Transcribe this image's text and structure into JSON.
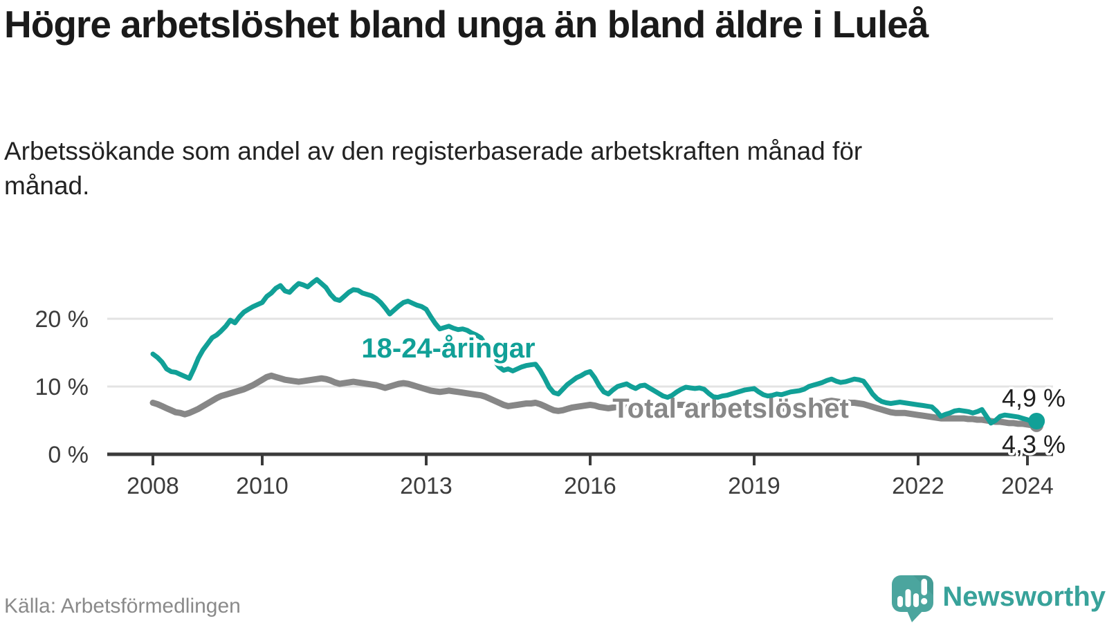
{
  "title": "Högre arbetslöshet bland unga än bland äldre i Luleå",
  "subtitle": "Arbetssökande som andel av den registerbaserade arbetskraften månad för månad.",
  "source": "Källa: Arbetsförmedlingen",
  "branding": {
    "name": "Newsworthy"
  },
  "colors": {
    "young": "#11a097",
    "total": "#878787",
    "title": "#1a1a1a",
    "axis": "#3a3a3a",
    "grid": "#e3e3e3",
    "tick_label": "#3c3c3c",
    "end_label": "#1f1f1f",
    "source": "#8a8a8a",
    "logo_bubble": "#4ba59e",
    "logo_fold": "#459c95",
    "logo_text": "#38a29a"
  },
  "chart_data": {
    "type": "line",
    "unit": "%",
    "x_start": 2008.0,
    "x_step_years": 0.0833333,
    "x_ticks": [
      {
        "v": 2008,
        "label": "2008"
      },
      {
        "v": 2010,
        "label": "2010"
      },
      {
        "v": 2013,
        "label": "2013"
      },
      {
        "v": 2016,
        "label": "2016"
      },
      {
        "v": 2019,
        "label": "2019"
      },
      {
        "v": 2022,
        "label": "2022"
      },
      {
        "v": 2024,
        "label": "2024"
      }
    ],
    "y_ticks": [
      {
        "v": 0,
        "label": "0 %"
      },
      {
        "v": 10,
        "label": "10 %"
      },
      {
        "v": 20,
        "label": "20 %"
      }
    ],
    "ylim": [
      0,
      27
    ],
    "grid": true,
    "legend_position": "inline-labels",
    "series": [
      {
        "name": "18-24-åringar",
        "color_key": "young",
        "end_label": "4,9 %",
        "last_value": 4.9,
        "values": [
          14.8,
          14.3,
          13.6,
          12.6,
          12.2,
          12.1,
          11.8,
          11.5,
          11.2,
          12.6,
          14.2,
          15.4,
          16.3,
          17.2,
          17.6,
          18.2,
          18.9,
          19.8,
          19.4,
          20.3,
          21.0,
          21.4,
          21.8,
          22.1,
          22.4,
          23.3,
          23.8,
          24.5,
          24.9,
          24.1,
          23.9,
          24.6,
          25.2,
          25.0,
          24.7,
          25.3,
          25.8,
          25.2,
          24.6,
          23.6,
          22.9,
          22.7,
          23.3,
          23.9,
          24.3,
          24.2,
          23.8,
          23.6,
          23.4,
          23.0,
          22.4,
          21.6,
          20.7,
          21.3,
          21.9,
          22.4,
          22.6,
          22.3,
          22.0,
          21.8,
          21.4,
          20.3,
          19.3,
          18.5,
          18.7,
          18.9,
          18.6,
          18.4,
          18.5,
          18.3,
          17.9,
          17.6,
          17.2,
          16.2,
          15.0,
          13.8,
          12.9,
          12.4,
          12.6,
          12.3,
          12.6,
          12.9,
          13.1,
          13.2,
          13.3,
          12.4,
          11.2,
          9.9,
          9.1,
          8.9,
          9.6,
          10.3,
          10.8,
          11.3,
          11.6,
          12.0,
          12.2,
          11.3,
          10.1,
          9.2,
          8.9,
          9.5,
          10.0,
          10.2,
          10.4,
          10.0,
          9.7,
          10.1,
          10.2,
          9.8,
          9.4,
          9.0,
          8.6,
          8.4,
          8.7,
          9.2,
          9.6,
          9.9,
          9.8,
          9.7,
          9.8,
          9.6,
          9.0,
          8.5,
          8.4,
          8.6,
          8.7,
          8.9,
          9.1,
          9.3,
          9.5,
          9.6,
          9.7,
          9.2,
          8.8,
          8.6,
          8.7,
          8.9,
          8.8,
          9.0,
          9.2,
          9.3,
          9.4,
          9.6,
          10.0,
          10.2,
          10.4,
          10.6,
          10.9,
          11.1,
          10.8,
          10.6,
          10.7,
          10.9,
          11.1,
          11.0,
          10.8,
          9.9,
          8.9,
          8.2,
          7.8,
          7.6,
          7.5,
          7.6,
          7.7,
          7.6,
          7.5,
          7.4,
          7.3,
          7.2,
          7.1,
          7.0,
          6.4,
          5.6,
          5.9,
          6.1,
          6.4,
          6.5,
          6.4,
          6.3,
          6.1,
          6.3,
          6.6,
          5.6,
          4.6,
          5.0,
          5.6,
          5.8,
          5.7,
          5.6,
          5.5,
          5.3,
          5.1,
          4.8,
          4.9
        ]
      },
      {
        "name": "Total arbetslöshet",
        "color_key": "total",
        "end_label": "4,3 %",
        "last_value": 4.3,
        "values": [
          7.6,
          7.4,
          7.1,
          6.8,
          6.5,
          6.2,
          6.1,
          5.9,
          6.1,
          6.4,
          6.7,
          7.1,
          7.5,
          7.9,
          8.3,
          8.6,
          8.8,
          9.0,
          9.2,
          9.4,
          9.6,
          9.9,
          10.2,
          10.6,
          11.0,
          11.4,
          11.6,
          11.4,
          11.2,
          11.0,
          10.9,
          10.8,
          10.7,
          10.8,
          10.9,
          11.0,
          11.1,
          11.2,
          11.1,
          10.9,
          10.6,
          10.4,
          10.5,
          10.6,
          10.7,
          10.6,
          10.5,
          10.4,
          10.3,
          10.2,
          10.0,
          9.8,
          10.0,
          10.2,
          10.4,
          10.5,
          10.4,
          10.2,
          10.0,
          9.8,
          9.6,
          9.4,
          9.3,
          9.2,
          9.3,
          9.4,
          9.3,
          9.2,
          9.1,
          9.0,
          8.9,
          8.8,
          8.7,
          8.5,
          8.2,
          7.9,
          7.6,
          7.3,
          7.1,
          7.2,
          7.3,
          7.4,
          7.5,
          7.5,
          7.6,
          7.4,
          7.1,
          6.8,
          6.5,
          6.4,
          6.5,
          6.7,
          6.9,
          7.0,
          7.1,
          7.2,
          7.3,
          7.2,
          7.0,
          6.9,
          6.8,
          6.9,
          7.0,
          6.9,
          6.9,
          7.0,
          7.0,
          7.0,
          7.0,
          7.0,
          7.1,
          7.1,
          7.2,
          7.2,
          7.3,
          7.3,
          7.3,
          7.3,
          7.3,
          7.3,
          7.3,
          7.2,
          7.1,
          7.0,
          6.9,
          6.8,
          6.8,
          6.7,
          6.7,
          6.8,
          6.8,
          6.8,
          6.8,
          6.7,
          6.7,
          6.6,
          6.6,
          6.7,
          6.7,
          6.8,
          6.8,
          6.9,
          7.0,
          7.1,
          7.2,
          7.3,
          7.5,
          7.6,
          7.8,
          7.9,
          7.8,
          7.7,
          7.7,
          7.6,
          7.6,
          7.5,
          7.4,
          7.2,
          7.0,
          6.8,
          6.6,
          6.4,
          6.2,
          6.1,
          6.1,
          6.1,
          6.0,
          5.9,
          5.8,
          5.7,
          5.6,
          5.5,
          5.4,
          5.3,
          5.3,
          5.3,
          5.3,
          5.3,
          5.3,
          5.2,
          5.2,
          5.1,
          5.1,
          5.0,
          4.9,
          4.8,
          4.8,
          4.7,
          4.6,
          4.6,
          4.5,
          4.5,
          4.4,
          4.3,
          4.3
        ]
      }
    ]
  }
}
